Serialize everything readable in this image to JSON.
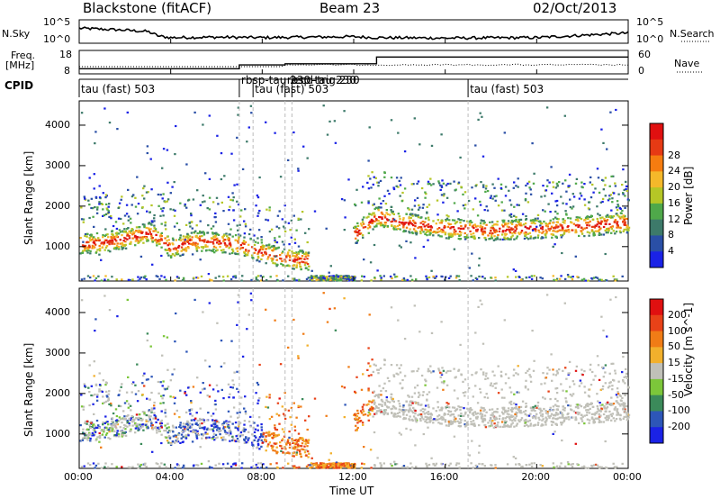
{
  "header": {
    "station": "Blackstone (fitACF)",
    "beam": "Beam 23",
    "date": "02/Oct/2013"
  },
  "noise_panel": {
    "left_label": "N.Sky",
    "left_ticks": [
      "10^5",
      "10^0"
    ],
    "right_label": "N.Search",
    "right_ticks": [
      "10^5",
      "10^0"
    ]
  },
  "freq_panel": {
    "left_label_line1": "Freq.",
    "left_label_line2": "[MHz]",
    "left_ticks": [
      "18",
      "8"
    ],
    "right_label": "Nave",
    "right_ticks": [
      "60",
      "0"
    ]
  },
  "cpid": {
    "label": "CPID",
    "segments": [
      {
        "label": "tau (fast) 503",
        "start_h": 0
      },
      {
        "label": "rbsp-tau 230",
        "start_h": 7.0
      },
      {
        "label": "tau (fast) 503",
        "start_h": 7.6
      },
      {
        "label": "rbsp-tau 230",
        "start_h": 9.0
      },
      {
        "label": "ecd-trig 230",
        "start_h": 9.3
      },
      {
        "label": "tau (fast) 503",
        "start_h": 17.0
      }
    ]
  },
  "x_axis": {
    "label": "Time UT",
    "ticks": [
      "00:00",
      "04:00",
      "08:00",
      "12:00",
      "16:00",
      "20:00",
      "00:00"
    ]
  },
  "y_axis": {
    "label": "Slant Range [km]",
    "ticks": [
      "1000",
      "2000",
      "3000",
      "4000"
    ]
  },
  "power_scale": {
    "label": "Power [dB]",
    "ticks": [
      "4",
      "8",
      "12",
      "16",
      "20",
      "24",
      "28"
    ],
    "colors": [
      "#1a22e6",
      "#2a4fa6",
      "#3d7a6a",
      "#4fa84a",
      "#b5c626",
      "#f4b82a",
      "#f57c10",
      "#e63a14",
      "#e01010"
    ]
  },
  "velocity_scale": {
    "label": "Velocity [m s^-1]",
    "ticks": [
      "200",
      "100",
      "50",
      "15",
      "-15",
      "-50",
      "-100",
      "-200"
    ],
    "colors": [
      "#1a22e6",
      "#2d56b8",
      "#3b8a5a",
      "#7cc63a",
      "#c0c0b8",
      "#f2b02c",
      "#f07c16",
      "#e84218",
      "#e01010"
    ]
  },
  "chart_data": [
    {
      "type": "line",
      "name": "noise",
      "x_range_h": [
        0,
        24
      ],
      "series": [
        {
          "x": [
            0,
            1,
            2,
            3,
            3.5,
            4,
            6,
            8,
            10,
            12,
            13,
            16,
            20,
            24
          ],
          "y": [
            3.2,
            3.0,
            2.8,
            2.5,
            1.5,
            1.2,
            1.3,
            1.2,
            1.3,
            1.4,
            1.2,
            1.1,
            1.2,
            2.2
          ]
        }
      ]
    },
    {
      "type": "line",
      "name": "frequency",
      "x_range_h": [
        0,
        24
      ],
      "y_range_mhz": [
        8,
        18
      ],
      "series": [
        {
          "x": [
            0,
            7.0,
            7.0,
            9.0,
            9.0,
            13.0,
            13.0,
            24
          ],
          "y": [
            10.2,
            10.2,
            11.8,
            11.8,
            12.3,
            12.3,
            15.2,
            15.2
          ]
        }
      ]
    },
    {
      "type": "heatmap",
      "name": "power",
      "x_range_h": [
        0,
        24
      ],
      "y_range_km": [
        150,
        4600
      ],
      "bands": [
        {
          "x": [
            0,
            1,
            2,
            3,
            3.5,
            4,
            5,
            6,
            7,
            8,
            9,
            10,
            11,
            12,
            13,
            14,
            16,
            18,
            20,
            22,
            24
          ],
          "y": [
            1050,
            1100,
            1200,
            1350,
            1200,
            950,
            1150,
            1100,
            1050,
            850,
            700,
            650,
            null,
            1300,
            1750,
            1600,
            1450,
            1400,
            1450,
            1500,
            1600
          ]
        }
      ]
    },
    {
      "type": "heatmap",
      "name": "velocity",
      "x_range_h": [
        0,
        24
      ],
      "y_range_km": [
        150,
        4600
      ]
    }
  ]
}
